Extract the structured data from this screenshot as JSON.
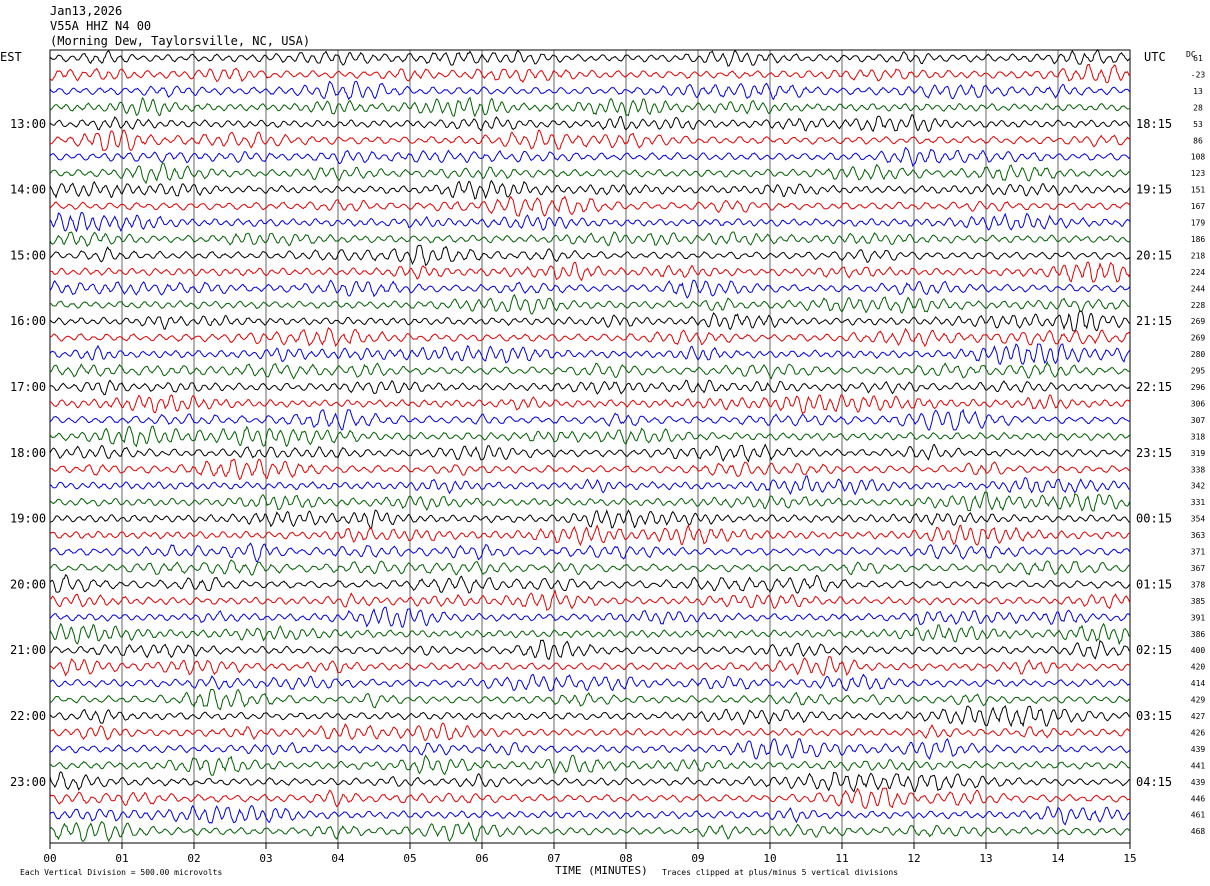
{
  "header": {
    "date": "Jan13,2026",
    "station": "V55A HHZ N4 00",
    "location": "(Morning Dew, Taylorsville, NC, USA)"
  },
  "left_axis_label": "EST",
  "right_axis_label": "UTC",
  "dc_label": "DC",
  "footer": {
    "scale_note": "Each Vertical Division =  500.00 microvolts",
    "xlabel": "TIME (MINUTES)",
    "clip_note": "Traces clipped at plus/minus 5 vertical divisions"
  },
  "chart_data": {
    "type": "line",
    "title": "V55A HHZ N4 00",
    "xlabel": "TIME (MINUTES)",
    "xlim": [
      0,
      15
    ],
    "x_ticks": [
      "00",
      "01",
      "02",
      "03",
      "04",
      "05",
      "06",
      "07",
      "08",
      "09",
      "10",
      "11",
      "12",
      "13",
      "14",
      "15"
    ],
    "trace_colors": [
      "#000000",
      "#e00000",
      "#0000e0",
      "#006000"
    ],
    "left_times": [
      "13:00",
      "14:00",
      "15:00",
      "16:00",
      "17:00",
      "18:00",
      "19:00",
      "20:00",
      "21:00",
      "22:00",
      "23:00"
    ],
    "right_times": [
      "18:15",
      "19:15",
      "20:15",
      "21:15",
      "22:15",
      "23:15",
      "00:15",
      "01:15",
      "02:15",
      "03:15",
      "04:15"
    ],
    "dc_offsets": [
      61,
      -23,
      13,
      28,
      53,
      86,
      108,
      123,
      151,
      167,
      179,
      186,
      218,
      224,
      244,
      228,
      269,
      269,
      280,
      295,
      296,
      306,
      307,
      318,
      319,
      338,
      342,
      331,
      354,
      363,
      371,
      367,
      378,
      385,
      391,
      386,
      400,
      420,
      414,
      429,
      427,
      426,
      439,
      441,
      439,
      446,
      461,
      468
    ],
    "events": [
      {
        "row": 16,
        "start_min": 14.1,
        "end_min": 14.5,
        "label": ""
      },
      {
        "row": 18,
        "start_min": 13.2,
        "end_min": 14.3,
        "label": ""
      }
    ]
  }
}
